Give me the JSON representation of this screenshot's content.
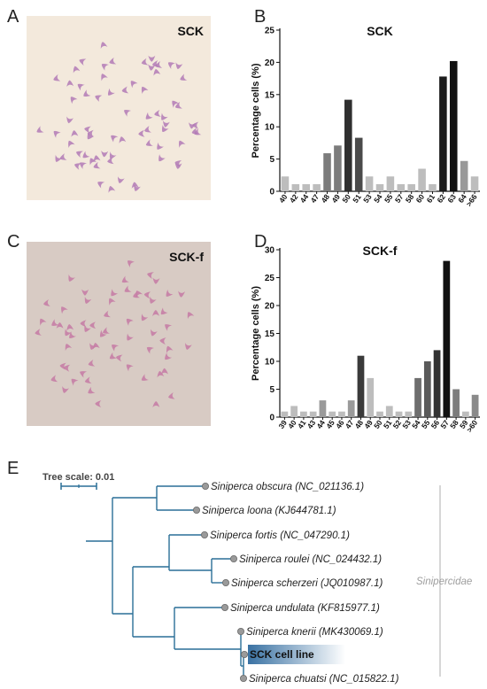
{
  "panels": {
    "A": {
      "letter": "A",
      "label": "SCK",
      "background": "#f3e9dc",
      "chromosome_color": "#b27ab6"
    },
    "B": {
      "letter": "B"
    },
    "C": {
      "letter": "C",
      "label": "SCK-f",
      "background": "#d8cbc4",
      "chromosome_color": "#c67aa5"
    },
    "D": {
      "letter": "D"
    },
    "E": {
      "letter": "E",
      "tree_scale_label": "Tree scale: 0.01",
      "group_label": "Siniperca",
      "group_label_suffix": "idae",
      "group_label_full": "Sinipercidae",
      "taxa": [
        {
          "species": "Siniperca obscura",
          "accession": "(NC_021136.1)"
        },
        {
          "species": "Siniperca loona",
          "accession": "(KJ644781.1)"
        },
        {
          "species": "Siniperca fortis",
          "accession": "(NC_047290.1)"
        },
        {
          "species": "Siniperca roulei",
          "accession": "(NC_024432.1)"
        },
        {
          "species": "Siniperca scherzeri",
          "accession": "(JQ010987.1)"
        },
        {
          "species": "Siniperca undulata",
          "accession": "(KF815977.1)"
        },
        {
          "species": "Siniperca knerii",
          "accession": "(MK430069.1)"
        },
        {
          "species": "SCK cell line",
          "accession": ""
        },
        {
          "species": "Siniperca chuatsi",
          "accession": "(NC_015822.1)"
        }
      ],
      "branch_color": "#2a6f97",
      "node_color": "#9a9a9a",
      "highlight_color": "#2f6a9e"
    }
  },
  "chart_data": [
    {
      "type": "bar",
      "title": "SCK",
      "ylabel": "Percentage cells (%)",
      "xlabel": "",
      "ylim": [
        0,
        25
      ],
      "yticks": [
        0,
        5,
        10,
        15,
        20,
        25
      ],
      "categories": [
        "40",
        "42",
        "44",
        "47",
        "48",
        "49",
        "50",
        "51",
        "53",
        "54",
        "55",
        "57",
        "58",
        "60",
        "61",
        "62",
        "63",
        "64",
        ">66"
      ],
      "values": [
        2.3,
        1.1,
        1.1,
        1.1,
        5.9,
        7.1,
        14.2,
        8.3,
        2.3,
        1.1,
        2.3,
        1.1,
        1.1,
        3.5,
        1.1,
        17.8,
        20.2,
        4.7,
        2.3
      ],
      "colors": [
        "#bdbdbd",
        "#bdbdbd",
        "#bdbdbd",
        "#bdbdbd",
        "#7c7c7c",
        "#7c7c7c",
        "#2f2f2f",
        "#4a4a4a",
        "#bdbdbd",
        "#bdbdbd",
        "#bdbdbd",
        "#bdbdbd",
        "#bdbdbd",
        "#bdbdbd",
        "#bdbdbd",
        "#1c1c1c",
        "#111111",
        "#999999",
        "#bdbdbd"
      ],
      "grid": false
    },
    {
      "type": "bar",
      "title": "SCK-f",
      "ylabel": "Percentage cells (%)",
      "xlabel": "",
      "ylim": [
        0,
        30
      ],
      "yticks": [
        0,
        5,
        10,
        15,
        20,
        25,
        30
      ],
      "categories": [
        "39",
        "40",
        "41",
        "43",
        "44",
        "45",
        "46",
        "47",
        "48",
        "49",
        "50",
        "51",
        "52",
        "53",
        "54",
        "55",
        "56",
        "57",
        "58",
        "59",
        ">60"
      ],
      "values": [
        1,
        2,
        1,
        1,
        3,
        1,
        1,
        3,
        11,
        7,
        1,
        2,
        1,
        1,
        7,
        10,
        12,
        28,
        5,
        1,
        4
      ],
      "colors": [
        "#bdbdbd",
        "#bdbdbd",
        "#bdbdbd",
        "#bdbdbd",
        "#9a9a9a",
        "#bdbdbd",
        "#bdbdbd",
        "#9a9a9a",
        "#3a3a3a",
        "#bdbdbd",
        "#bdbdbd",
        "#bdbdbd",
        "#bdbdbd",
        "#bdbdbd",
        "#6e6e6e",
        "#5a5a5a",
        "#333333",
        "#111111",
        "#7c7c7c",
        "#bdbdbd",
        "#8a8a8a"
      ],
      "grid": false
    }
  ]
}
